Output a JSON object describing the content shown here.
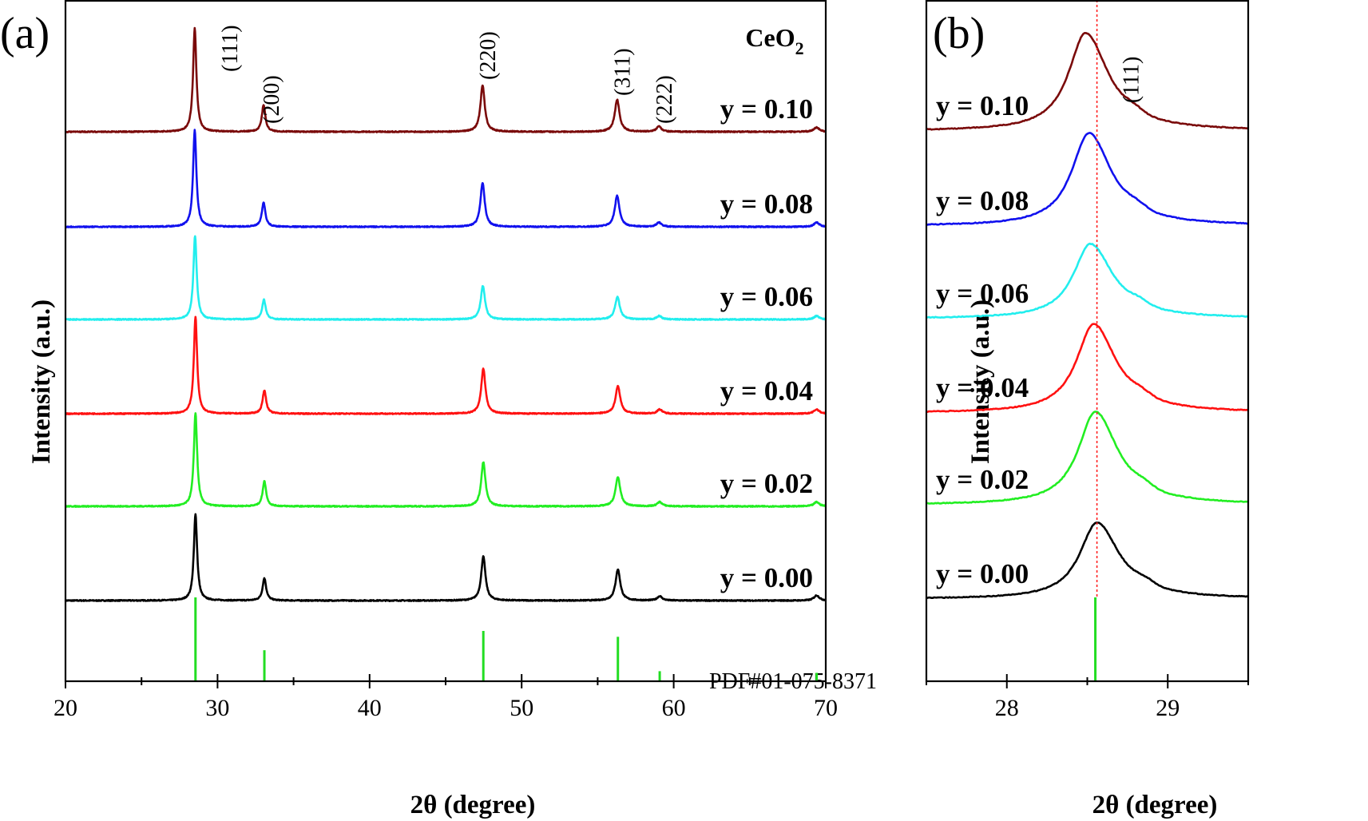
{
  "chart_data": [
    {
      "type": "line",
      "panel_label": "(a)",
      "xlabel": "2θ (degree)",
      "ylabel": "Intensity (a.u.)",
      "xlim": [
        20,
        70
      ],
      "xticks": [
        20,
        30,
        40,
        50,
        60,
        70
      ],
      "compound_label": "CeO",
      "compound_sub": "2",
      "reference_label": "PDF#01-075-8371",
      "reference_color": "#22dd22",
      "reference_peaks": [
        {
          "x": 28.55,
          "intensity": 1.0
        },
        {
          "x": 33.08,
          "intensity": 0.37
        },
        {
          "x": 47.48,
          "intensity": 0.6
        },
        {
          "x": 56.33,
          "intensity": 0.53
        },
        {
          "x": 59.08,
          "intensity": 0.12
        },
        {
          "x": 69.4,
          "intensity": 0.1
        }
      ],
      "peak_annotations": [
        {
          "label": "(111)",
          "x": 28.55
        },
        {
          "label": "(200)",
          "x": 33.08
        },
        {
          "label": "(220)",
          "x": 47.48
        },
        {
          "label": "(311)",
          "x": 56.33
        },
        {
          "label": "(222)",
          "x": 59.08
        }
      ],
      "series": [
        {
          "name": "y = 0.00",
          "color": "#000000",
          "peaks": [
            [
              28.55,
              1.0
            ],
            [
              33.08,
              0.26
            ],
            [
              47.48,
              0.51
            ],
            [
              56.33,
              0.36
            ],
            [
              59.08,
              0.05
            ],
            [
              69.4,
              0.06
            ]
          ]
        },
        {
          "name": "y = 0.02",
          "color": "#22ee22",
          "peaks": [
            [
              28.55,
              1.08
            ],
            [
              33.08,
              0.29
            ],
            [
              47.48,
              0.51
            ],
            [
              56.33,
              0.34
            ],
            [
              59.08,
              0.05
            ],
            [
              69.4,
              0.05
            ]
          ]
        },
        {
          "name": "y = 0.04",
          "color": "#ff1111",
          "peaks": [
            [
              28.55,
              1.12
            ],
            [
              33.08,
              0.27
            ],
            [
              47.48,
              0.52
            ],
            [
              56.33,
              0.32
            ],
            [
              59.08,
              0.05
            ],
            [
              69.4,
              0.05
            ]
          ]
        },
        {
          "name": "y = 0.06",
          "color": "#22eeee",
          "peaks": [
            [
              28.52,
              0.97
            ],
            [
              33.05,
              0.23
            ],
            [
              47.45,
              0.39
            ],
            [
              56.3,
              0.26
            ],
            [
              59.05,
              0.04
            ],
            [
              69.4,
              0.04
            ]
          ]
        },
        {
          "name": "y = 0.08",
          "color": "#1111ee",
          "peaks": [
            [
              28.5,
              1.12
            ],
            [
              33.03,
              0.28
            ],
            [
              47.43,
              0.51
            ],
            [
              56.28,
              0.36
            ],
            [
              59.03,
              0.05
            ],
            [
              69.4,
              0.05
            ]
          ]
        },
        {
          "name": "y = 0.10",
          "color": "#7a0a0a",
          "peaks": [
            [
              28.5,
              1.2
            ],
            [
              33.03,
              0.31
            ],
            [
              47.43,
              0.54
            ],
            [
              56.28,
              0.37
            ],
            [
              59.03,
              0.06
            ],
            [
              69.4,
              0.05
            ]
          ]
        }
      ]
    },
    {
      "type": "line",
      "panel_label": "(b)",
      "xlabel": "2θ (degree)",
      "ylabel": "Intensity (a.u.)",
      "xlim": [
        27.5,
        29.5
      ],
      "xticks": [
        28,
        29
      ],
      "peak_annotation": "(111)",
      "reference_line_x": 28.56,
      "reference_peak_x": 28.55,
      "series": [
        {
          "name": "y = 0.00",
          "color": "#000000",
          "center": 28.56,
          "height": 0.92
        },
        {
          "name": "y = 0.02",
          "color": "#22ee22",
          "center": 28.55,
          "height": 1.12
        },
        {
          "name": "y = 0.04",
          "color": "#ff1111",
          "center": 28.54,
          "height": 1.07
        },
        {
          "name": "y = 0.06",
          "color": "#22eeee",
          "center": 28.52,
          "height": 0.9
        },
        {
          "name": "y = 0.08",
          "color": "#1111ee",
          "center": 28.51,
          "height": 1.12
        },
        {
          "name": "y = 0.10",
          "color": "#7a0a0a",
          "center": 28.49,
          "height": 1.18
        }
      ]
    }
  ]
}
